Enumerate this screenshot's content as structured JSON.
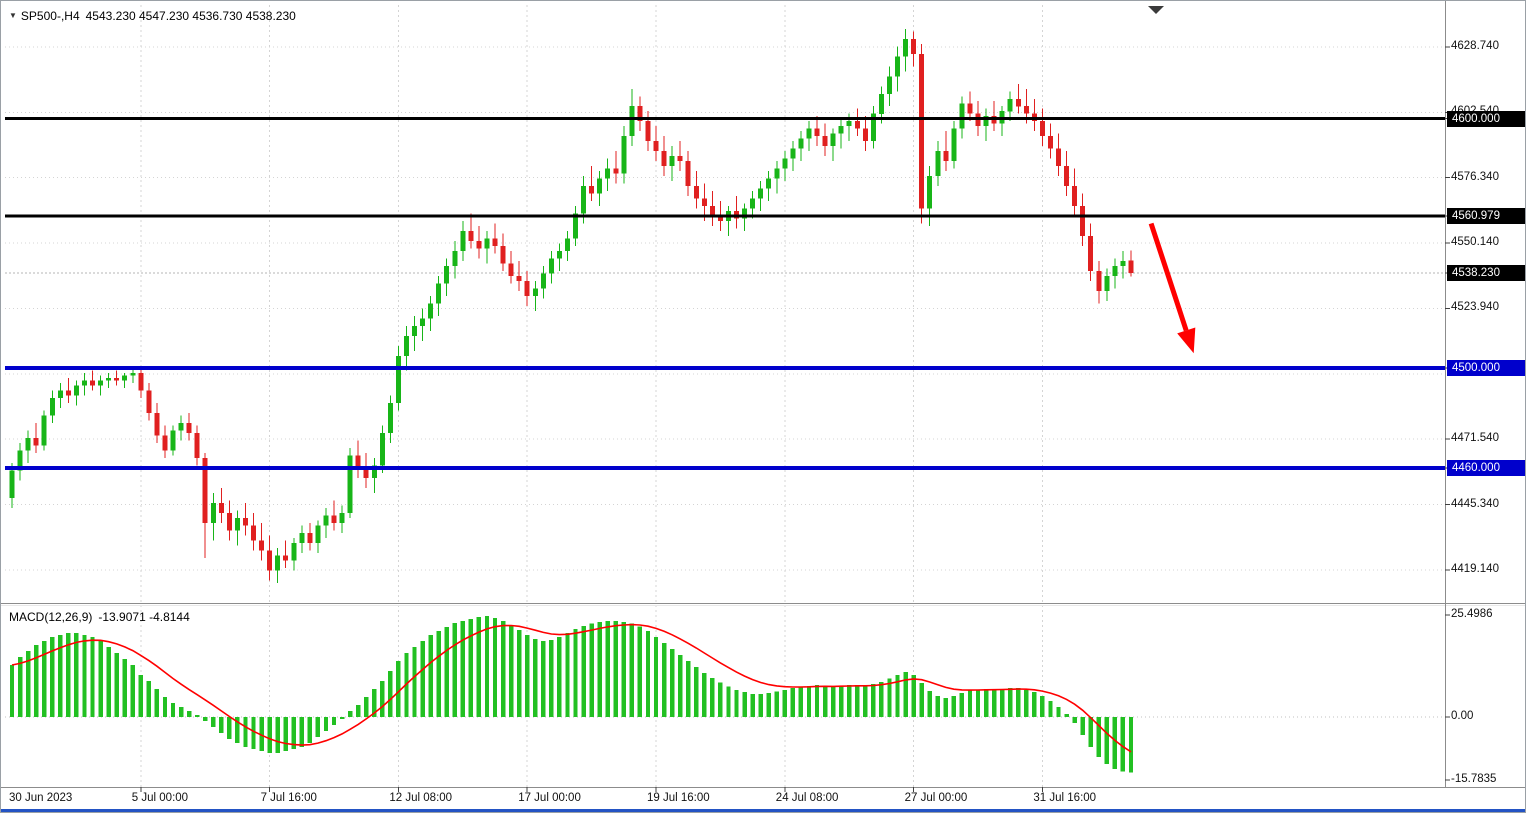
{
  "window": {
    "grid_color": "#d4d4d4",
    "frame_color": "#8c8c8c",
    "bottom_border_color": "#2353c4"
  },
  "header": {
    "dropdown_icon": "▼",
    "symbol": "SP500-,H4",
    "ohlc_values": "4543.230 4547.230 4536.730 4538.230"
  },
  "indicator_header": {
    "name": "MACD(12,26,9)",
    "values": "-13.9071 -4.8144"
  },
  "chart_data": {
    "type": "candlestick",
    "symbol": "SP500-",
    "timeframe": "H4",
    "current_ohlc": {
      "open": 4543.23,
      "high": 4547.23,
      "low": 4536.73,
      "close": 4538.23
    },
    "colors": {
      "up": "#18b518",
      "down": "#e02020",
      "hline_black": "#000000",
      "hline_blue": "#0000cc",
      "arrow": "#ff0000",
      "current_price_line": "#b4b4b4"
    },
    "y_axis": {
      "grid_prices": [
        4628.74,
        4602.54,
        4576.34,
        4550.14,
        4523.94,
        4497.74,
        4471.54,
        4445.34,
        4419.14
      ],
      "labels": [
        {
          "text": "4628.740",
          "price": 4628.74
        },
        {
          "text": "4602.540",
          "price": 4602.54
        },
        {
          "text": "4576.340",
          "price": 4576.34
        },
        {
          "text": "4550.140",
          "price": 4550.14
        },
        {
          "text": "4523.940",
          "price": 4523.94
        },
        {
          "text": "4471.540",
          "price": 4471.54
        },
        {
          "text": "4445.340",
          "price": 4445.34
        },
        {
          "text": "4419.140",
          "price": 4419.14
        }
      ],
      "badges": [
        {
          "text": "4600.000",
          "price": 4600.0,
          "bg": "#000000"
        },
        {
          "text": "4560.979",
          "price": 4560.979,
          "bg": "#000000"
        },
        {
          "text": "4538.230",
          "price": 4538.23,
          "bg": "#000000"
        },
        {
          "text": "4500.000",
          "price": 4500.0,
          "bg": "#0000cc"
        },
        {
          "text": "4460.000",
          "price": 4460.0,
          "bg": "#0000cc"
        }
      ]
    },
    "x_axis": {
      "labels": [
        {
          "text": "30 Jun 2023",
          "bar": 0
        },
        {
          "text": "5 Jul 00:00",
          "bar": 16
        },
        {
          "text": "7 Jul 16:00",
          "bar": 32
        },
        {
          "text": "12 Jul 08:00",
          "bar": 48
        },
        {
          "text": "17 Jul 00:00",
          "bar": 64
        },
        {
          "text": "19 Jul 16:00",
          "bar": 80
        },
        {
          "text": "24 Jul 08:00",
          "bar": 96
        },
        {
          "text": "27 Jul 00:00",
          "bar": 112
        },
        {
          "text": "31 Jul 16:00",
          "bar": 128
        }
      ]
    },
    "horizontal_lines": [
      {
        "price": 4600.0,
        "color": "#000000",
        "width": 3
      },
      {
        "price": 4560.979,
        "color": "#000000",
        "width": 3
      },
      {
        "price": 4500.0,
        "color": "#0000cc",
        "width": 4
      },
      {
        "price": 4460.0,
        "color": "#0000cc",
        "width": 4
      }
    ],
    "current_price_line": 4538.23,
    "trend_arrow": {
      "from_bar": 141.5,
      "from_price": 4558.0,
      "to_bar": 146.8,
      "to_price": 4506.0,
      "color": "#ff0000"
    },
    "candles": [
      [
        4448,
        4462,
        4444,
        4459
      ],
      [
        4459,
        4470,
        4455,
        4467
      ],
      [
        4467,
        4475,
        4462,
        4472
      ],
      [
        4472,
        4478,
        4466,
        4469
      ],
      [
        4469,
        4483,
        4467,
        4481
      ],
      [
        4481,
        4491,
        4478,
        4488
      ],
      [
        4488,
        4494,
        4484,
        4491
      ],
      [
        4491,
        4496,
        4486,
        4489
      ],
      [
        4489,
        4495,
        4485,
        4493
      ],
      [
        4493,
        4498,
        4489,
        4495
      ],
      [
        4495,
        4499,
        4491,
        4493
      ],
      [
        4493,
        4497,
        4489,
        4495
      ],
      [
        4495,
        4498,
        4492,
        4496
      ],
      [
        4496,
        4499,
        4493,
        4495
      ],
      [
        4495,
        4498,
        4492,
        4497
      ],
      [
        4497,
        4500,
        4494,
        4498
      ],
      [
        4498,
        4500,
        4488,
        4491
      ],
      [
        4491,
        4494,
        4479,
        4482
      ],
      [
        4482,
        4486,
        4470,
        4473
      ],
      [
        4473,
        4477,
        4464,
        4467
      ],
      [
        4467,
        4477,
        4465,
        4475
      ],
      [
        4475,
        4481,
        4471,
        4478
      ],
      [
        4478,
        4482,
        4471,
        4474
      ],
      [
        4474,
        4477,
        4461,
        4464
      ],
      [
        4464,
        4466,
        4424,
        4438
      ],
      [
        4438,
        4450,
        4431,
        4446
      ],
      [
        4446,
        4452,
        4438,
        4442
      ],
      [
        4442,
        4447,
        4431,
        4435
      ],
      [
        4435,
        4443,
        4429,
        4440
      ],
      [
        4440,
        4446,
        4433,
        4437
      ],
      [
        4437,
        4442,
        4427,
        4431
      ],
      [
        4431,
        4438,
        4423,
        4427
      ],
      [
        4427,
        4433,
        4415,
        4419
      ],
      [
        4419,
        4428,
        4414,
        4425
      ],
      [
        4425,
        4431,
        4420,
        4423
      ],
      [
        4423,
        4432,
        4419,
        4430
      ],
      [
        4430,
        4437,
        4426,
        4434
      ],
      [
        4434,
        4438,
        4427,
        4430
      ],
      [
        4430,
        4439,
        4426,
        4437
      ],
      [
        4437,
        4444,
        4432,
        4441
      ],
      [
        4441,
        4447,
        4435,
        4438
      ],
      [
        4438,
        4445,
        4434,
        4442
      ],
      [
        4442,
        4468,
        4440,
        4465
      ],
      [
        4465,
        4471,
        4456,
        4460
      ],
      [
        4460,
        4466,
        4452,
        4456
      ],
      [
        4456,
        4464,
        4450,
        4461
      ],
      [
        4461,
        4477,
        4458,
        4474
      ],
      [
        4474,
        4489,
        4470,
        4486
      ],
      [
        4486,
        4509,
        4483,
        4505
      ],
      [
        4505,
        4517,
        4499,
        4513
      ],
      [
        4513,
        4521,
        4507,
        4517
      ],
      [
        4517,
        4524,
        4511,
        4520
      ],
      [
        4520,
        4529,
        4515,
        4526
      ],
      [
        4526,
        4537,
        4521,
        4534
      ],
      [
        4534,
        4544,
        4529,
        4541
      ],
      [
        4541,
        4551,
        4536,
        4547
      ],
      [
        4547,
        4559,
        4543,
        4555
      ],
      [
        4555,
        4562,
        4548,
        4551
      ],
      [
        4551,
        4557,
        4544,
        4548
      ],
      [
        4548,
        4555,
        4542,
        4552
      ],
      [
        4552,
        4558,
        4546,
        4549
      ],
      [
        4549,
        4554,
        4539,
        4542
      ],
      [
        4542,
        4547,
        4534,
        4537
      ],
      [
        4537,
        4543,
        4531,
        4535
      ],
      [
        4535,
        4539,
        4525,
        4529
      ],
      [
        4529,
        4535,
        4523,
        4532
      ],
      [
        4532,
        4541,
        4528,
        4538
      ],
      [
        4538,
        4547,
        4534,
        4544
      ],
      [
        4544,
        4550,
        4539,
        4547
      ],
      [
        4547,
        4555,
        4543,
        4552
      ],
      [
        4552,
        4565,
        4549,
        4562
      ],
      [
        4562,
        4577,
        4558,
        4573
      ],
      [
        4573,
        4581,
        4567,
        4570
      ],
      [
        4570,
        4579,
        4565,
        4576
      ],
      [
        4576,
        4584,
        4571,
        4580
      ],
      [
        4580,
        4587,
        4574,
        4578
      ],
      [
        4578,
        4597,
        4574,
        4593
      ],
      [
        4593,
        4612,
        4589,
        4605
      ],
      [
        4605,
        4609,
        4595,
        4599
      ],
      [
        4599,
        4603,
        4587,
        4591
      ],
      [
        4591,
        4597,
        4583,
        4587
      ],
      [
        4587,
        4593,
        4577,
        4581
      ],
      [
        4581,
        4589,
        4575,
        4585
      ],
      [
        4585,
        4591,
        4579,
        4583
      ],
      [
        4583,
        4587,
        4569,
        4573
      ],
      [
        4573,
        4579,
        4564,
        4568
      ],
      [
        4568,
        4574,
        4559,
        4565
      ],
      [
        4565,
        4571,
        4557,
        4561
      ],
      [
        4561,
        4567,
        4555,
        4559
      ],
      [
        4559,
        4565,
        4553,
        4563
      ],
      [
        4563,
        4569,
        4556,
        4560
      ],
      [
        4560,
        4566,
        4555,
        4564
      ],
      [
        4564,
        4571,
        4560,
        4568
      ],
      [
        4568,
        4575,
        4563,
        4572
      ],
      [
        4572,
        4579,
        4567,
        4576
      ],
      [
        4576,
        4583,
        4570,
        4580
      ],
      [
        4580,
        4587,
        4575,
        4584
      ],
      [
        4584,
        4591,
        4579,
        4588
      ],
      [
        4588,
        4595,
        4583,
        4592
      ],
      [
        4592,
        4599,
        4587,
        4596
      ],
      [
        4596,
        4601,
        4589,
        4593
      ],
      [
        4593,
        4598,
        4585,
        4589
      ],
      [
        4589,
        4596,
        4583,
        4594
      ],
      [
        4594,
        4600,
        4588,
        4597
      ],
      [
        4597,
        4602,
        4591,
        4599
      ],
      [
        4599,
        4604,
        4593,
        4596
      ],
      [
        4596,
        4601,
        4587,
        4591
      ],
      [
        4591,
        4605,
        4588,
        4602
      ],
      [
        4602,
        4613,
        4598,
        4610
      ],
      [
        4610,
        4621,
        4605,
        4617
      ],
      [
        4617,
        4629,
        4611,
        4625
      ],
      [
        4625,
        4636,
        4619,
        4632
      ],
      [
        4632,
        4635,
        4621,
        4626
      ],
      [
        4626,
        4630,
        4558,
        4564
      ],
      [
        4564,
        4581,
        4557,
        4577
      ],
      [
        4577,
        4591,
        4573,
        4587
      ],
      [
        4587,
        4595,
        4579,
        4583
      ],
      [
        4583,
        4599,
        4580,
        4596
      ],
      [
        4596,
        4609,
        4592,
        4606
      ],
      [
        4606,
        4611,
        4599,
        4602
      ],
      [
        4602,
        4607,
        4593,
        4597
      ],
      [
        4597,
        4604,
        4591,
        4601
      ],
      [
        4601,
        4607,
        4595,
        4598
      ],
      [
        4598,
        4605,
        4593,
        4603
      ],
      [
        4603,
        4611,
        4599,
        4608
      ],
      [
        4608,
        4614,
        4602,
        4605
      ],
      [
        4605,
        4612,
        4598,
        4602
      ],
      [
        4602,
        4608,
        4595,
        4599
      ],
      [
        4599,
        4604,
        4589,
        4593
      ],
      [
        4593,
        4598,
        4584,
        4588
      ],
      [
        4588,
        4594,
        4577,
        4581
      ],
      [
        4581,
        4587,
        4569,
        4573
      ],
      [
        4573,
        4580,
        4561,
        4565
      ],
      [
        4565,
        4570,
        4549,
        4553
      ],
      [
        4553,
        4558,
        4535,
        4539
      ],
      [
        4539,
        4543,
        4526,
        4531
      ],
      [
        4531,
        4540,
        4527,
        4537
      ],
      [
        4537,
        4544,
        4532,
        4541
      ],
      [
        4541,
        4547,
        4536,
        4543
      ],
      [
        4543.23,
        4547.23,
        4536.73,
        4538.23
      ]
    ],
    "macd": {
      "params": [
        12,
        26,
        9
      ],
      "signal_period": 9,
      "histogram_color": "#22c022",
      "signal_color": "#ff0000",
      "current_main": -13.9071,
      "current_signal": -4.8144,
      "scale_labels": [
        {
          "text": "25.4986",
          "value": 25.4986
        },
        {
          "text": "0.00",
          "value": 0
        },
        {
          "text": "-15.7835",
          "value": -15.7835
        }
      ],
      "main": [
        13,
        15,
        16.5,
        18,
        19,
        20,
        20.5,
        21,
        21,
        20.5,
        20,
        19,
        17.5,
        16,
        14.5,
        13,
        10.5,
        9,
        7,
        5,
        3.5,
        2.5,
        1.5,
        0.5,
        -1,
        -2.5,
        -4,
        -5.5,
        -6.5,
        -7.5,
        -8,
        -8.5,
        -9,
        -9,
        -8.5,
        -8,
        -7.5,
        -6.5,
        -5,
        -3.5,
        -2,
        -0.5,
        1.5,
        3,
        5,
        7,
        9,
        11.5,
        14,
        16,
        17.5,
        19,
        20.5,
        21.5,
        22.5,
        23.5,
        24,
        24.5,
        25,
        25.2,
        24.8,
        24,
        23,
        21.8,
        20.5,
        19.5,
        19,
        19.2,
        20,
        21,
        22,
        22.8,
        23.4,
        23.8,
        24,
        24,
        23.8,
        23.4,
        22.6,
        21.5,
        20,
        18.5,
        17,
        15.5,
        14,
        12.5,
        11,
        9.8,
        8.6,
        7.6,
        6.8,
        6.2,
        5.8,
        5.8,
        6,
        6.4,
        6.8,
        7.2,
        7.5,
        7.8,
        8,
        7.8,
        7.6,
        7.8,
        8,
        8,
        7.8,
        8.2,
        8.8,
        9.6,
        10.5,
        11.2,
        10.5,
        8.5,
        6.5,
        5.2,
        4.8,
        5.2,
        6,
        6.6,
        6.8,
        7,
        7,
        7,
        7.2,
        7.2,
        6.8,
        6.2,
        5.2,
        4,
        2.5,
        0.8,
        -1.5,
        -4.5,
        -7.5,
        -10,
        -11.8,
        -13,
        -13.6,
        -13.9071
      ]
    }
  }
}
